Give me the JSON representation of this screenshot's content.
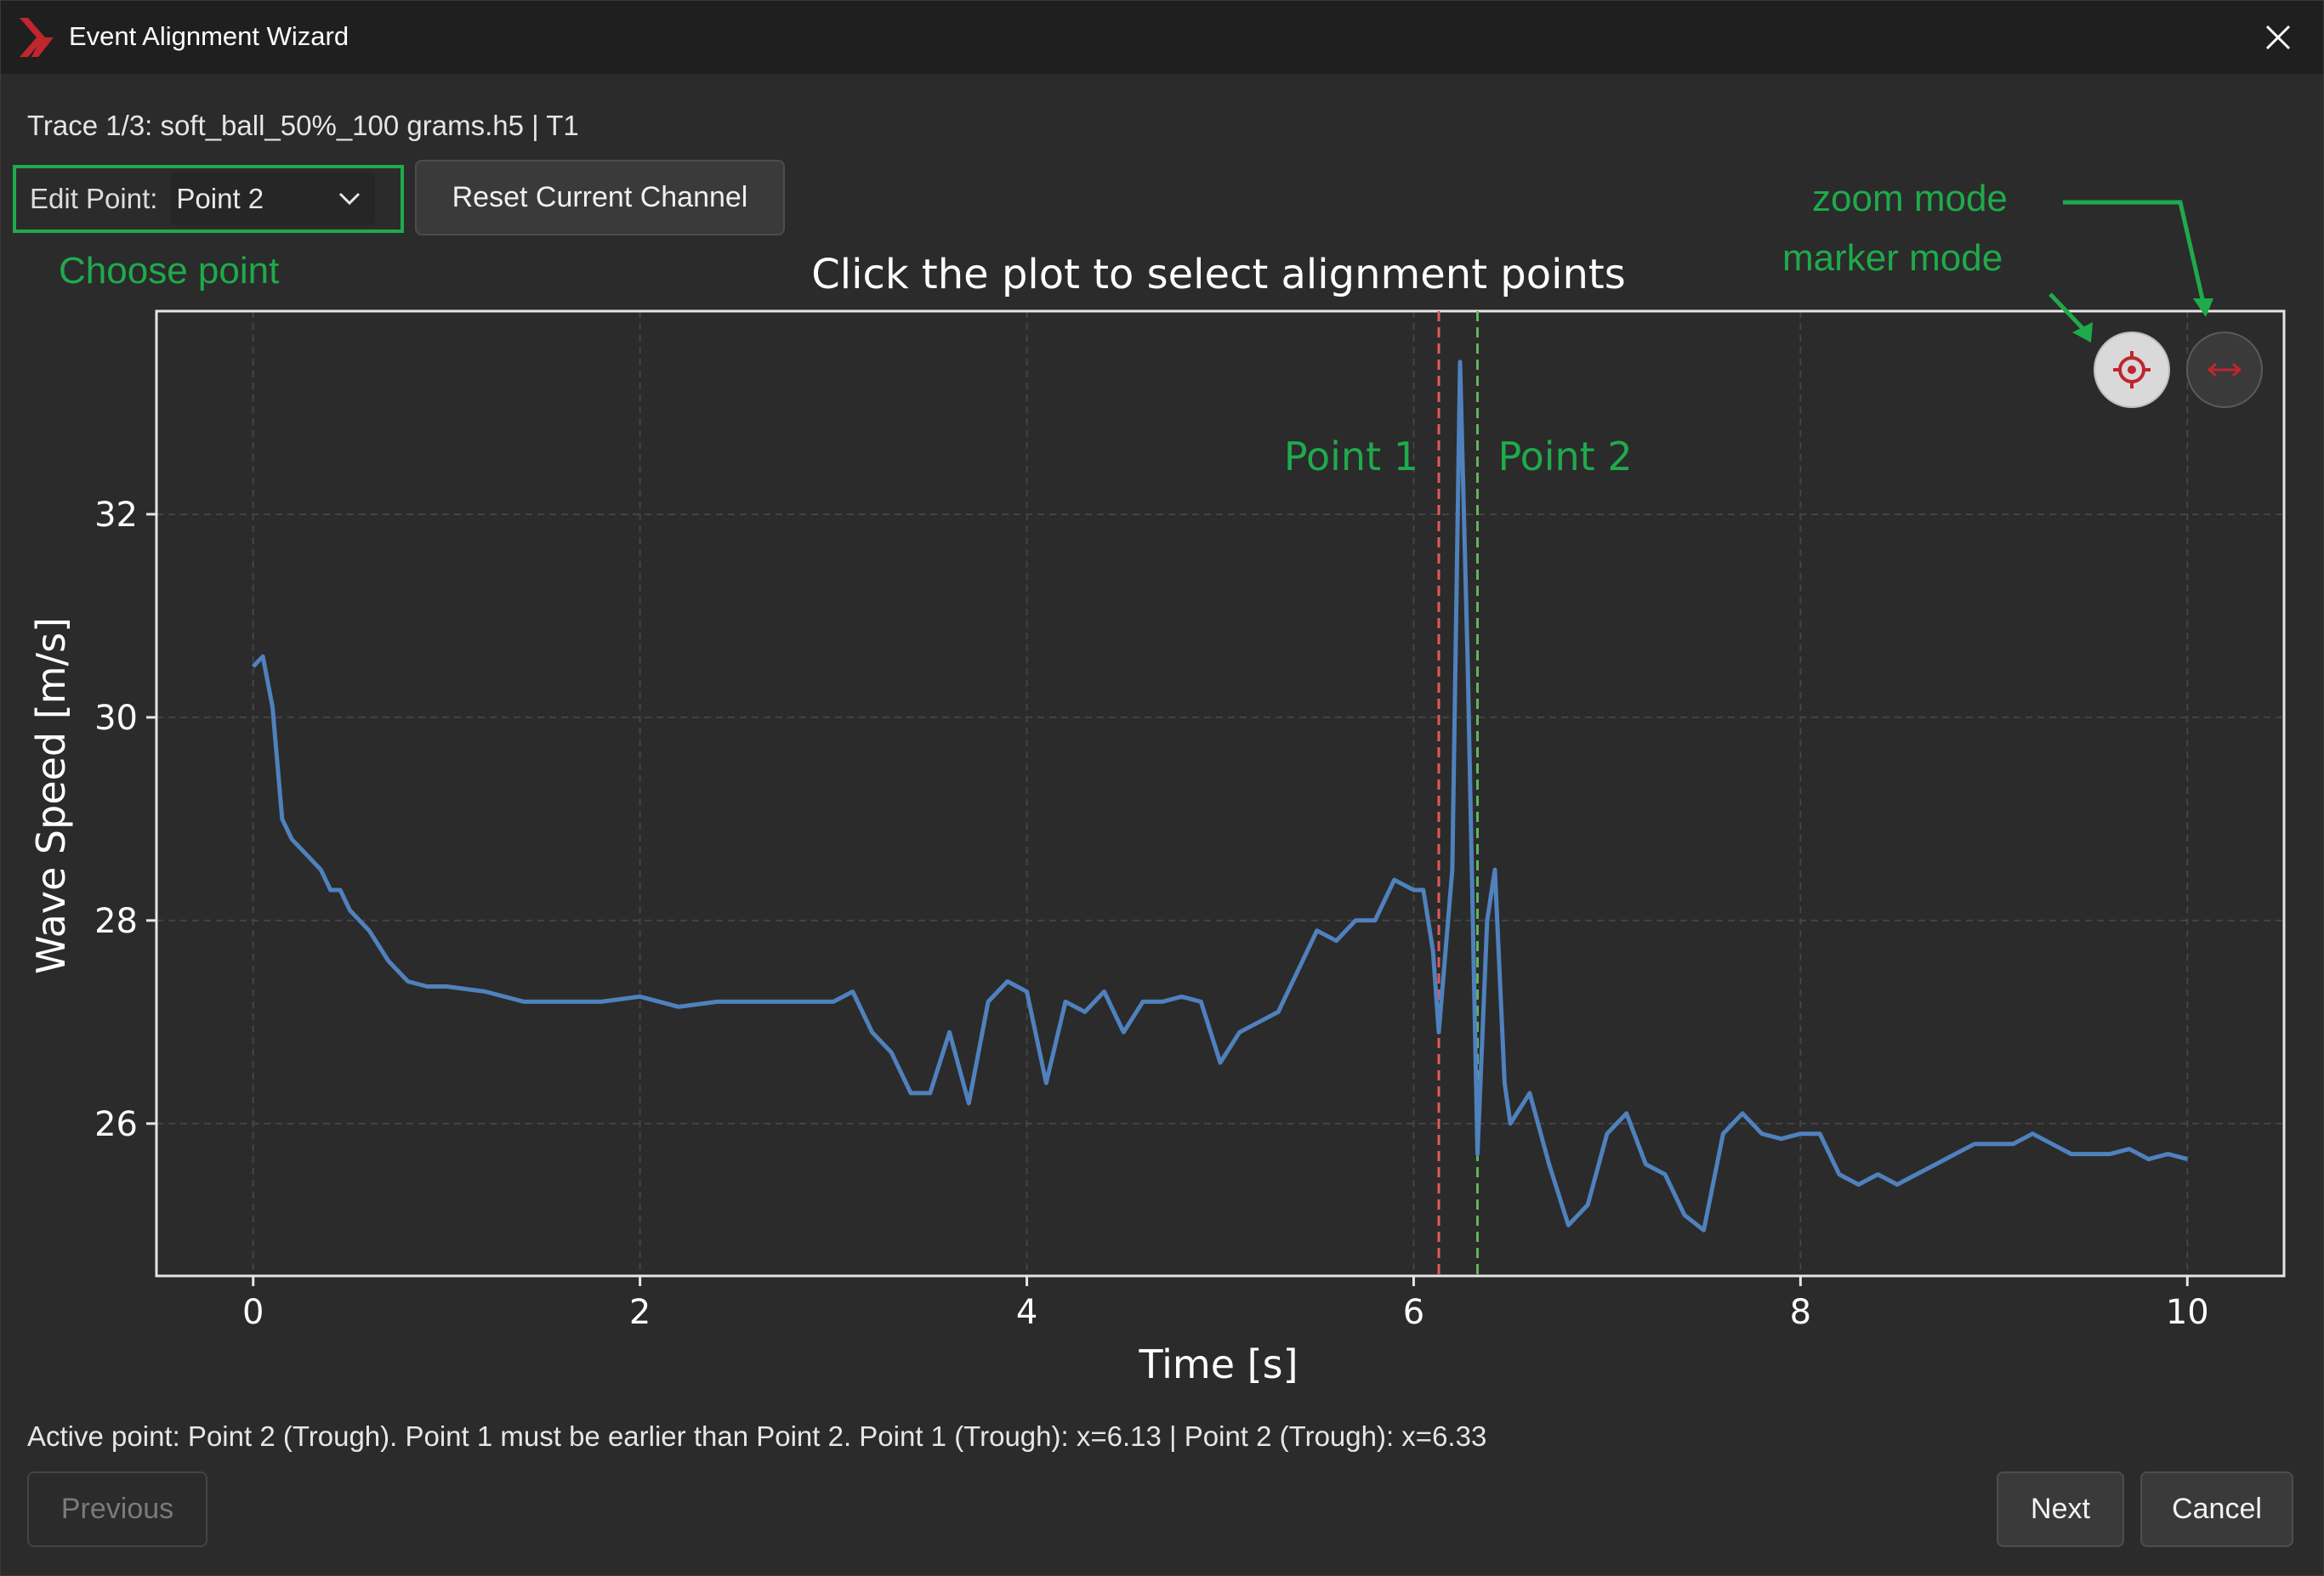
{
  "window": {
    "title": "Event Alignment Wizard",
    "close_label": "✕"
  },
  "trace_label": "Trace 1/3: soft_ball_50%_100 grams.h5 | T1",
  "edit_point": {
    "label": "Edit Point:",
    "selected": "Point 2"
  },
  "reset_button": "Reset Current Channel",
  "annotations": {
    "choose_point": "Choose point",
    "zoom_mode": "zoom mode",
    "marker_mode": "marker mode",
    "color": "#1faa4b"
  },
  "plot_toolbar": {
    "marker_mode_icon": "crosshair-target-icon",
    "zoom_mode_icon": "horizontal-arrows-icon"
  },
  "chart_data": {
    "type": "line",
    "title": "Click the plot to select alignment points",
    "xlabel": "Time [s]",
    "ylabel": "Wave Speed [m/s]",
    "xlim": [
      -0.5,
      10.5
    ],
    "ylim": [
      24.5,
      34
    ],
    "xticks": [
      0,
      2,
      4,
      6,
      8,
      10
    ],
    "yticks": [
      26,
      28,
      30,
      32
    ],
    "grid": true,
    "line_color": "#4f81bd",
    "series": [
      {
        "values_x": [
          0,
          0.05,
          0.1,
          0.15,
          0.2,
          0.25,
          0.3,
          0.35,
          0.4,
          0.45,
          0.5,
          0.55,
          0.6,
          0.7,
          0.8,
          0.9,
          1.0,
          1.2,
          1.4,
          1.6,
          1.8,
          2.0,
          2.2,
          2.4,
          2.6,
          2.8,
          3.0,
          3.1,
          3.2,
          3.3,
          3.4,
          3.5,
          3.6,
          3.7,
          3.8,
          3.9,
          4.0,
          4.1,
          4.2,
          4.3,
          4.4,
          4.5,
          4.6,
          4.7,
          4.8,
          4.9,
          5.0,
          5.1,
          5.2,
          5.3,
          5.4,
          5.5,
          5.6,
          5.7,
          5.8,
          5.9,
          6.0,
          6.05,
          6.1,
          6.13,
          6.2,
          6.24,
          6.28,
          6.33,
          6.38,
          6.42,
          6.47,
          6.5,
          6.6,
          6.7,
          6.8,
          6.9,
          7.0,
          7.1,
          7.2,
          7.3,
          7.4,
          7.5,
          7.6,
          7.7,
          7.8,
          7.9,
          8.0,
          8.1,
          8.2,
          8.3,
          8.4,
          8.5,
          8.6,
          8.7,
          8.8,
          8.9,
          9.0,
          9.1,
          9.2,
          9.3,
          9.4,
          9.5,
          9.6,
          9.7,
          9.8,
          9.9,
          10.0
        ],
        "values_y": [
          30.5,
          30.6,
          30.1,
          29.0,
          28.8,
          28.7,
          28.6,
          28.5,
          28.3,
          28.3,
          28.1,
          28.0,
          27.9,
          27.6,
          27.4,
          27.35,
          27.35,
          27.3,
          27.2,
          27.2,
          27.2,
          27.25,
          27.15,
          27.2,
          27.2,
          27.2,
          27.2,
          27.3,
          26.9,
          26.7,
          26.3,
          26.3,
          26.9,
          26.2,
          27.2,
          27.4,
          27.3,
          26.4,
          27.2,
          27.1,
          27.3,
          26.9,
          27.2,
          27.2,
          27.25,
          27.2,
          26.6,
          26.9,
          27.0,
          27.1,
          27.5,
          27.9,
          27.8,
          28.0,
          28.0,
          28.4,
          28.3,
          28.3,
          27.7,
          26.9,
          28.5,
          33.5,
          30.5,
          25.7,
          28.0,
          28.5,
          26.4,
          26.0,
          26.3,
          25.6,
          25.0,
          25.2,
          25.9,
          26.1,
          25.6,
          25.5,
          25.1,
          24.95,
          25.9,
          26.1,
          25.9,
          25.85,
          25.9,
          25.9,
          25.5,
          25.4,
          25.5,
          25.4,
          25.5,
          25.6,
          25.7,
          25.8,
          25.8,
          25.8,
          25.9,
          25.8,
          25.7,
          25.7,
          25.7,
          25.75,
          25.65,
          25.7,
          25.65
        ]
      }
    ],
    "markers": [
      {
        "name": "Point 1",
        "x": 6.13,
        "color": "#e05a5a"
      },
      {
        "name": "Point 2",
        "x": 6.33,
        "color": "#5cb85c"
      }
    ]
  },
  "status_text": "Active point: Point 2 (Trough). Point 1 must be earlier than Point 2. Point 1 (Trough): x=6.13 | Point 2 (Trough): x=6.33",
  "buttons": {
    "previous": "Previous",
    "next": "Next",
    "cancel": "Cancel"
  }
}
